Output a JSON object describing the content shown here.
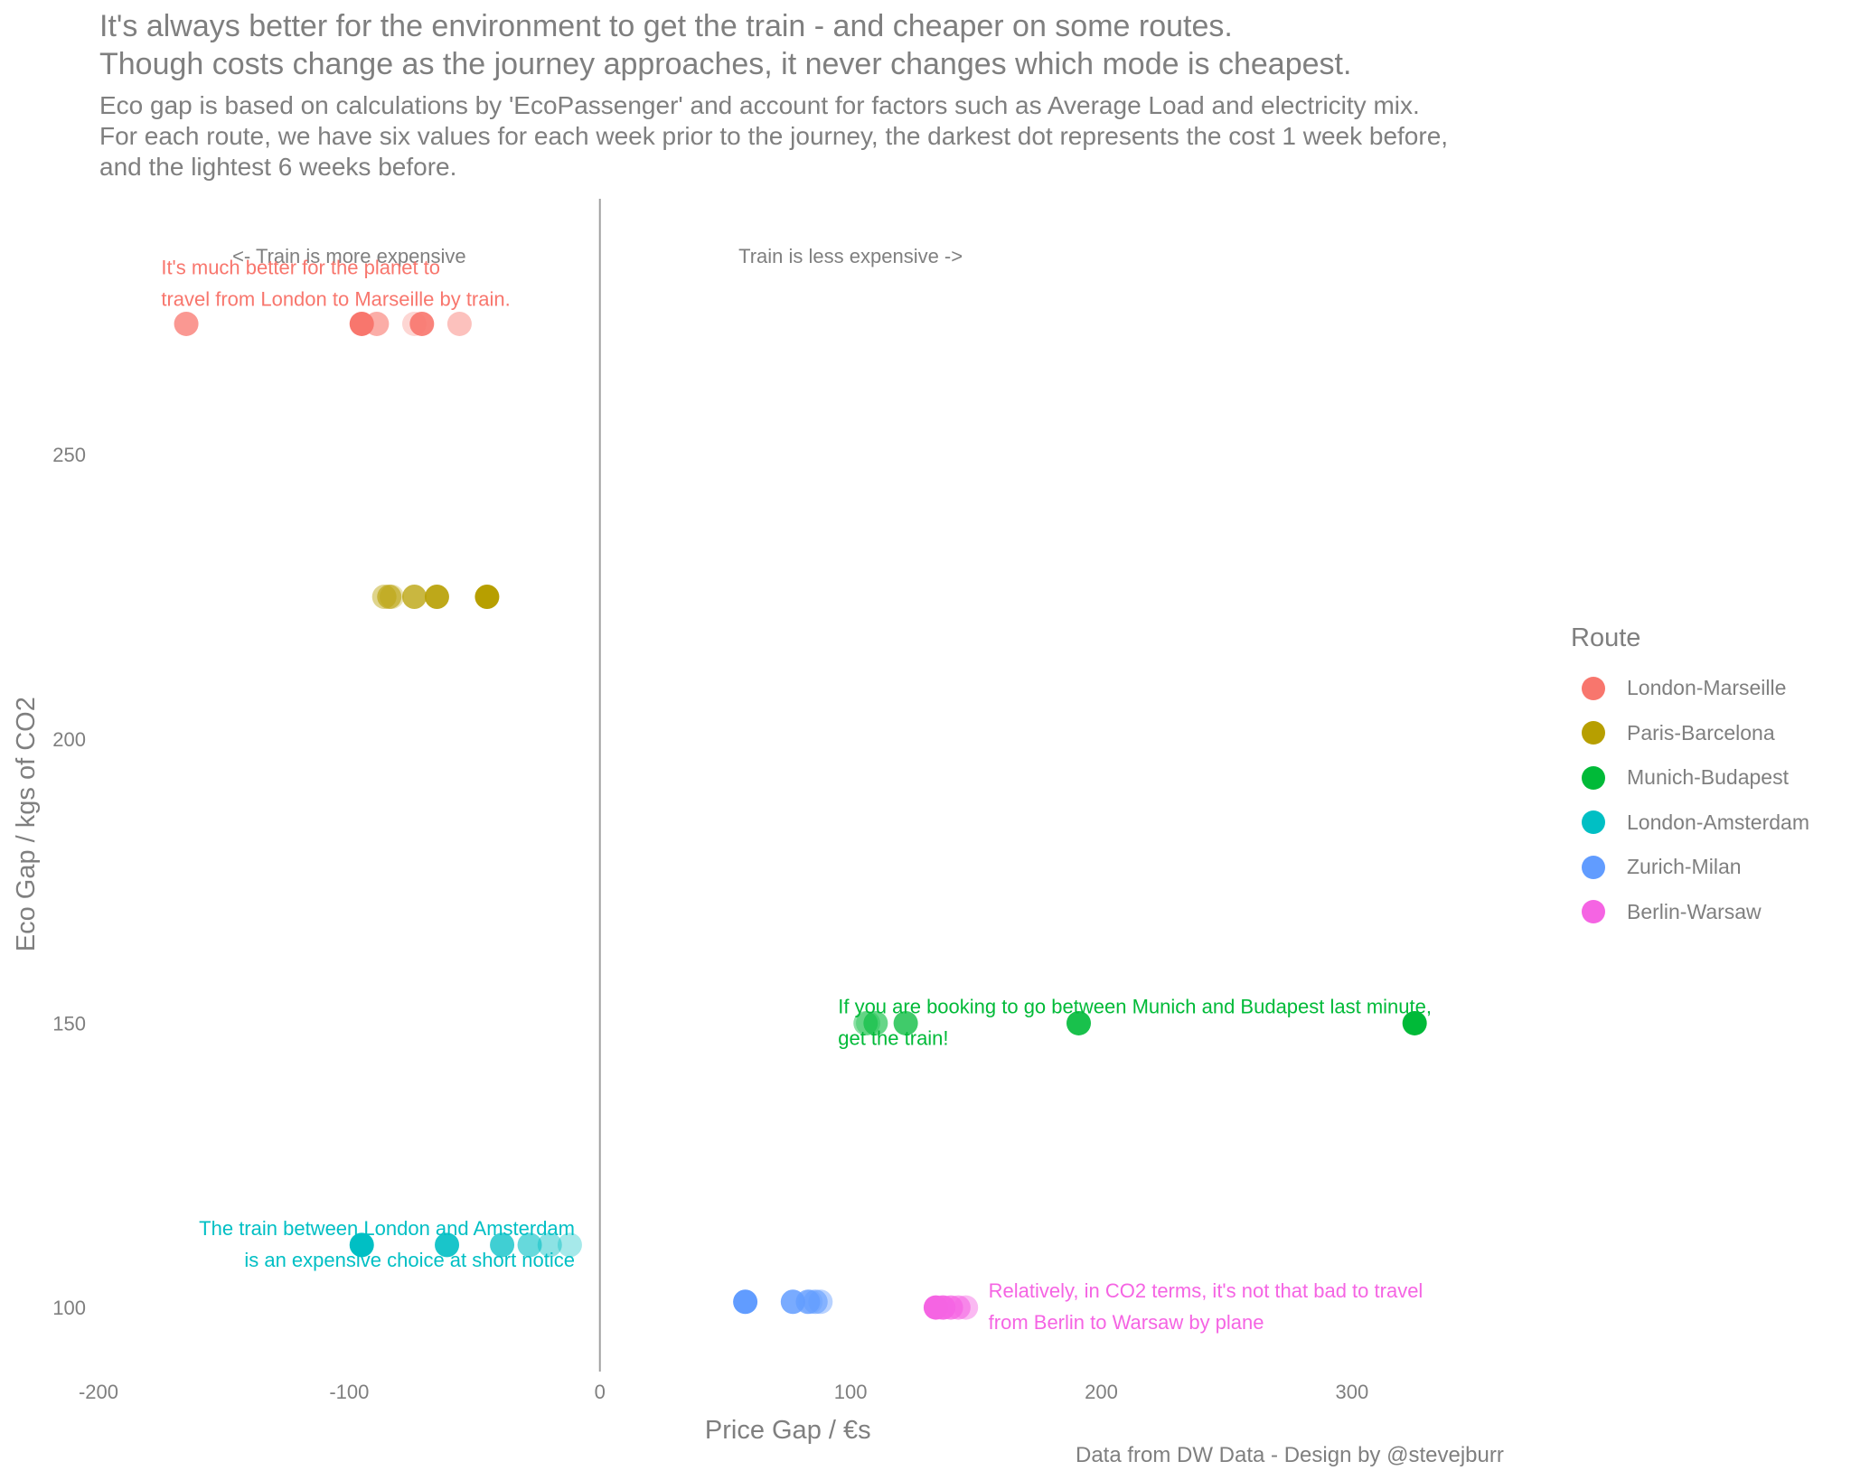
{
  "title": {
    "line1": "It's always better for the environment to get the train - and cheaper on some routes.",
    "line2": "Though costs change as the journey approaches, it never changes which mode is cheapest."
  },
  "subtitle": {
    "line1": "Eco gap is based on calculations by 'EcoPassenger' and account for factors such as Average Load and electricity mix.",
    "line2": "For each route, we have six values for each week prior to the journey, the darkest dot represents the cost 1 week before,",
    "line3": "and the lightest 6 weeks before."
  },
  "caption": "Data from DW Data - Design by @stevejburr",
  "legend": {
    "title": "Route",
    "items": [
      {
        "label": "London-Marseille",
        "color": "#F8766D"
      },
      {
        "label": "Paris-Barcelona",
        "color": "#B79F00"
      },
      {
        "label": "Munich-Budapest",
        "color": "#00BA38"
      },
      {
        "label": "London-Amsterdam",
        "color": "#00BFC4"
      },
      {
        "label": "Zurich-Milan",
        "color": "#619CFF"
      },
      {
        "label": "Berlin-Warsaw",
        "color": "#F564E3"
      }
    ]
  },
  "chart_data": {
    "type": "scatter",
    "xlabel": "Price Gap / €s",
    "ylabel": "Eco Gap / kgs of CO2",
    "xlim": [
      -200,
      370
    ],
    "ylim": [
      90,
      295
    ],
    "x_ticks": [
      -200,
      -100,
      0,
      100,
      200,
      300
    ],
    "x_tick_labels": [
      "-200",
      "-100",
      "0",
      "100",
      "200",
      "300"
    ],
    "y_ticks": [
      100,
      150,
      200,
      250
    ],
    "y_tick_labels": [
      "100",
      "150",
      "200",
      "250"
    ],
    "grid": false,
    "legend_position": "right",
    "reference_line_x": 0,
    "region_labels": [
      {
        "text": "<- Train is more expensive",
        "x": -100,
        "y": 285
      },
      {
        "text": "Train is less expensive ->",
        "x": 100,
        "y": 285
      }
    ],
    "series": [
      {
        "name": "London-Marseille",
        "color": "#F8766D",
        "y": 273,
        "x": [
          -95,
          -71,
          -165,
          -89,
          -56,
          -74
        ],
        "opacity": [
          1.0,
          0.9,
          0.75,
          0.6,
          0.45,
          0.3
        ]
      },
      {
        "name": "Paris-Barcelona",
        "color": "#B79F00",
        "y": 225,
        "x": [
          -45,
          -65,
          -74,
          -84,
          -86,
          -83
        ],
        "opacity": [
          1.0,
          0.9,
          0.75,
          0.6,
          0.45,
          0.3
        ]
      },
      {
        "name": "Munich-Budapest",
        "color": "#00BA38",
        "y": 150,
        "x": [
          325,
          191,
          122,
          110,
          106,
          107
        ],
        "opacity": [
          1.0,
          0.9,
          0.75,
          0.6,
          0.45,
          0.3
        ]
      },
      {
        "name": "London-Amsterdam",
        "color": "#00BFC4",
        "y": 111,
        "x": [
          -95,
          -61,
          -39,
          -28,
          -20,
          -12
        ],
        "opacity": [
          1.0,
          0.9,
          0.75,
          0.6,
          0.45,
          0.35
        ]
      },
      {
        "name": "Zurich-Milan",
        "color": "#619CFF",
        "y": 101,
        "x": [
          58,
          77,
          83,
          86,
          88,
          84
        ],
        "opacity": [
          1.0,
          0.85,
          0.75,
          0.6,
          0.45,
          0.35
        ]
      },
      {
        "name": "Berlin-Warsaw",
        "color": "#F564E3",
        "y": 100,
        "x": [
          134,
          137,
          140,
          143,
          146,
          136
        ],
        "opacity": [
          1.0,
          0.9,
          0.75,
          0.6,
          0.45,
          0.35
        ]
      }
    ],
    "annotations": [
      {
        "lines": [
          "It's much better for the planet to",
          "travel from London to Marseille by train."
        ],
        "color": "#F8766D",
        "x": -175,
        "y": 283,
        "anchor": "start"
      },
      {
        "lines": [
          "If you are booking to go between Munich and Budapest last minute,",
          "get the train!"
        ],
        "color": "#00BA38",
        "x": 95,
        "y": 153,
        "anchor": "start"
      },
      {
        "lines": [
          "The train between London and Amsterdam",
          "is an expensive choice at short notice"
        ],
        "color": "#00BFC4",
        "x": -10,
        "y": 114,
        "anchor": "end"
      },
      {
        "lines": [
          "Relatively, in CO2 terms, it's not that bad to travel",
          "from Berlin to Warsaw by plane"
        ],
        "color": "#F564E3",
        "x": 155,
        "y": 103,
        "anchor": "start"
      }
    ]
  }
}
